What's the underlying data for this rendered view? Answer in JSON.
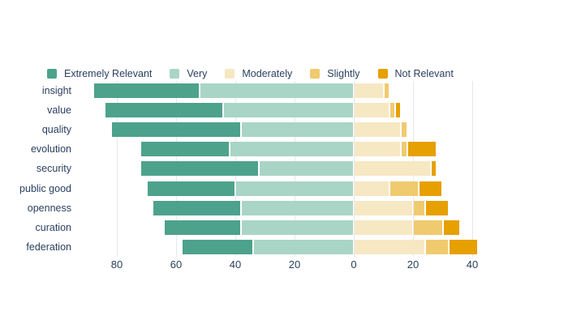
{
  "chart_data": {
    "type": "bar",
    "variant": "diverging-stacked-horizontal-likert",
    "title": "",
    "categories": [
      "insight",
      "value",
      "quality",
      "evolution",
      "security",
      "public good",
      "openness",
      "curation",
      "federation"
    ],
    "series": [
      {
        "name": "Extremely Relevant",
        "side": "left",
        "color": "#4DA28C",
        "values": [
          36,
          40,
          44,
          30,
          40,
          30,
          30,
          26,
          24
        ]
      },
      {
        "name": "Very",
        "side": "left",
        "color": "#A9D5C6",
        "values": [
          52,
          44,
          38,
          42,
          32,
          40,
          38,
          38,
          34
        ]
      },
      {
        "name": "Moderately",
        "side": "right",
        "color": "#F7E8C4",
        "values": [
          10,
          12,
          16,
          16,
          26,
          12,
          20,
          20,
          24
        ]
      },
      {
        "name": "Slightly",
        "side": "right",
        "color": "#F0CA6E",
        "values": [
          2,
          2,
          2,
          2,
          0,
          10,
          4,
          10,
          8
        ]
      },
      {
        "name": "Not Relevant",
        "side": "right",
        "color": "#E6A000",
        "values": [
          0,
          2,
          0,
          10,
          2,
          8,
          8,
          6,
          10
        ]
      }
    ],
    "x_ticks": [
      -80,
      -60,
      -40,
      -20,
      0,
      20,
      40
    ],
    "x_tick_labels": [
      "80",
      "60",
      "40",
      "20",
      "0",
      "20",
      "40"
    ],
    "xlim": [
      -93.5,
      53.5
    ],
    "xlabel": "",
    "ylabel": "",
    "legend_position": "top-horizontal",
    "grid": true,
    "text_color": "#2a3f5f",
    "grid_color": "#e8e8e8",
    "background_color": "#ffffff"
  }
}
